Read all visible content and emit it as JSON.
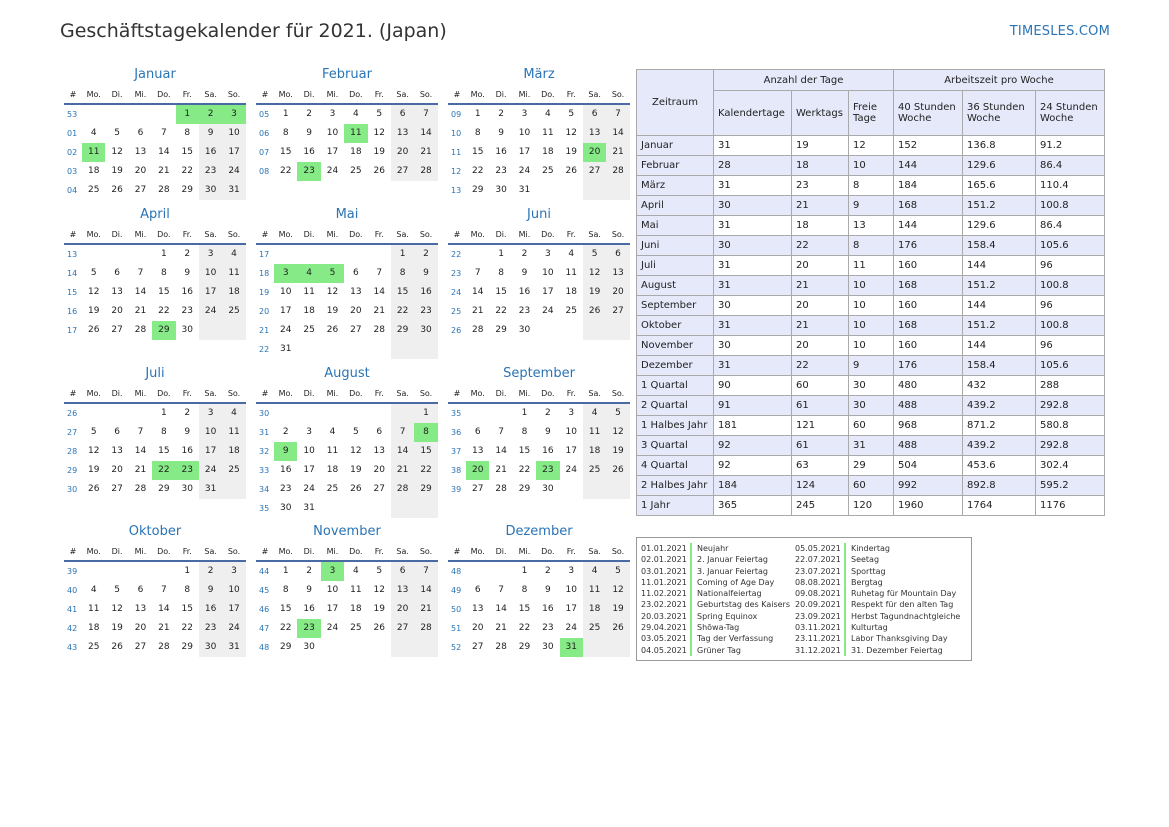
{
  "page": {
    "title": "Geschäftstagekalender für 2021. (Japan)",
    "brand": "TIMESLES.COM"
  },
  "calendar": {
    "weekday_header": [
      "#",
      "Mo.",
      "Di.",
      "Mi.",
      "Do.",
      "Fr.",
      "Sa.",
      "So."
    ],
    "months": [
      {
        "name": "Januar",
        "rows": [
          [
            "53",
            "",
            "",
            "",
            "",
            "1",
            "2",
            "3"
          ],
          [
            "01",
            "4",
            "5",
            "6",
            "7",
            "8",
            "9",
            "10"
          ],
          [
            "02",
            "11",
            "12",
            "13",
            "14",
            "15",
            "16",
            "17"
          ],
          [
            "03",
            "18",
            "19",
            "20",
            "21",
            "22",
            "23",
            "24"
          ],
          [
            "04",
            "25",
            "26",
            "27",
            "28",
            "29",
            "30",
            "31"
          ]
        ],
        "holidays": [
          "1",
          "2",
          "3",
          "11"
        ]
      },
      {
        "name": "Februar",
        "rows": [
          [
            "05",
            "1",
            "2",
            "3",
            "4",
            "5",
            "6",
            "7"
          ],
          [
            "06",
            "8",
            "9",
            "10",
            "11",
            "12",
            "13",
            "14"
          ],
          [
            "07",
            "15",
            "16",
            "17",
            "18",
            "19",
            "20",
            "21"
          ],
          [
            "08",
            "22",
            "23",
            "24",
            "25",
            "26",
            "27",
            "28"
          ]
        ],
        "holidays": [
          "11",
          "23"
        ]
      },
      {
        "name": "März",
        "rows": [
          [
            "09",
            "1",
            "2",
            "3",
            "4",
            "5",
            "6",
            "7"
          ],
          [
            "10",
            "8",
            "9",
            "10",
            "11",
            "12",
            "13",
            "14"
          ],
          [
            "11",
            "15",
            "16",
            "17",
            "18",
            "19",
            "20",
            "21"
          ],
          [
            "12",
            "22",
            "23",
            "24",
            "25",
            "26",
            "27",
            "28"
          ],
          [
            "13",
            "29",
            "30",
            "31",
            "",
            "",
            "",
            ""
          ]
        ],
        "holidays": [
          "20"
        ]
      },
      {
        "name": "April",
        "rows": [
          [
            "13",
            "",
            "",
            "",
            "1",
            "2",
            "3",
            "4"
          ],
          [
            "14",
            "5",
            "6",
            "7",
            "8",
            "9",
            "10",
            "11"
          ],
          [
            "15",
            "12",
            "13",
            "14",
            "15",
            "16",
            "17",
            "18"
          ],
          [
            "16",
            "19",
            "20",
            "21",
            "22",
            "23",
            "24",
            "25"
          ],
          [
            "17",
            "26",
            "27",
            "28",
            "29",
            "30",
            "",
            ""
          ]
        ],
        "holidays": [
          "29"
        ]
      },
      {
        "name": "Mai",
        "rows": [
          [
            "17",
            "",
            "",
            "",
            "",
            "",
            "1",
            "2"
          ],
          [
            "18",
            "3",
            "4",
            "5",
            "6",
            "7",
            "8",
            "9"
          ],
          [
            "19",
            "10",
            "11",
            "12",
            "13",
            "14",
            "15",
            "16"
          ],
          [
            "20",
            "17",
            "18",
            "19",
            "20",
            "21",
            "22",
            "23"
          ],
          [
            "21",
            "24",
            "25",
            "26",
            "27",
            "28",
            "29",
            "30"
          ],
          [
            "22",
            "31",
            "",
            "",
            "",
            "",
            "",
            ""
          ]
        ],
        "holidays": [
          "3",
          "4",
          "5"
        ]
      },
      {
        "name": "Juni",
        "rows": [
          [
            "22",
            "",
            "1",
            "2",
            "3",
            "4",
            "5",
            "6"
          ],
          [
            "23",
            "7",
            "8",
            "9",
            "10",
            "11",
            "12",
            "13"
          ],
          [
            "24",
            "14",
            "15",
            "16",
            "17",
            "18",
            "19",
            "20"
          ],
          [
            "25",
            "21",
            "22",
            "23",
            "24",
            "25",
            "26",
            "27"
          ],
          [
            "26",
            "28",
            "29",
            "30",
            "",
            "",
            "",
            ""
          ]
        ],
        "holidays": []
      },
      {
        "name": "Juli",
        "rows": [
          [
            "26",
            "",
            "",
            "",
            "1",
            "2",
            "3",
            "4"
          ],
          [
            "27",
            "5",
            "6",
            "7",
            "8",
            "9",
            "10",
            "11"
          ],
          [
            "28",
            "12",
            "13",
            "14",
            "15",
            "16",
            "17",
            "18"
          ],
          [
            "29",
            "19",
            "20",
            "21",
            "22",
            "23",
            "24",
            "25"
          ],
          [
            "30",
            "26",
            "27",
            "28",
            "29",
            "30",
            "31",
            ""
          ]
        ],
        "holidays": [
          "22",
          "23"
        ]
      },
      {
        "name": "August",
        "rows": [
          [
            "30",
            "",
            "",
            "",
            "",
            "",
            "",
            "1"
          ],
          [
            "31",
            "2",
            "3",
            "4",
            "5",
            "6",
            "7",
            "8"
          ],
          [
            "32",
            "9",
            "10",
            "11",
            "12",
            "13",
            "14",
            "15"
          ],
          [
            "33",
            "16",
            "17",
            "18",
            "19",
            "20",
            "21",
            "22"
          ],
          [
            "34",
            "23",
            "24",
            "25",
            "26",
            "27",
            "28",
            "29"
          ],
          [
            "35",
            "30",
            "31",
            "",
            "",
            "",
            "",
            ""
          ]
        ],
        "holidays": [
          "8",
          "9"
        ]
      },
      {
        "name": "September",
        "rows": [
          [
            "35",
            "",
            "",
            "1",
            "2",
            "3",
            "4",
            "5"
          ],
          [
            "36",
            "6",
            "7",
            "8",
            "9",
            "10",
            "11",
            "12"
          ],
          [
            "37",
            "13",
            "14",
            "15",
            "16",
            "17",
            "18",
            "19"
          ],
          [
            "38",
            "20",
            "21",
            "22",
            "23",
            "24",
            "25",
            "26"
          ],
          [
            "39",
            "27",
            "28",
            "29",
            "30",
            "",
            "",
            ""
          ]
        ],
        "holidays": [
          "20",
          "23"
        ]
      },
      {
        "name": "Oktober",
        "rows": [
          [
            "39",
            "",
            "",
            "",
            "",
            "1",
            "2",
            "3"
          ],
          [
            "40",
            "4",
            "5",
            "6",
            "7",
            "8",
            "9",
            "10"
          ],
          [
            "41",
            "11",
            "12",
            "13",
            "14",
            "15",
            "16",
            "17"
          ],
          [
            "42",
            "18",
            "19",
            "20",
            "21",
            "22",
            "23",
            "24"
          ],
          [
            "43",
            "25",
            "26",
            "27",
            "28",
            "29",
            "30",
            "31"
          ]
        ],
        "holidays": []
      },
      {
        "name": "November",
        "rows": [
          [
            "44",
            "1",
            "2",
            "3",
            "4",
            "5",
            "6",
            "7"
          ],
          [
            "45",
            "8",
            "9",
            "10",
            "11",
            "12",
            "13",
            "14"
          ],
          [
            "46",
            "15",
            "16",
            "17",
            "18",
            "19",
            "20",
            "21"
          ],
          [
            "47",
            "22",
            "23",
            "24",
            "25",
            "26",
            "27",
            "28"
          ],
          [
            "48",
            "29",
            "30",
            "",
            "",
            "",
            "",
            ""
          ]
        ],
        "holidays": [
          "3",
          "23"
        ]
      },
      {
        "name": "Dezember",
        "rows": [
          [
            "48",
            "",
            "",
            "1",
            "2",
            "3",
            "4",
            "5"
          ],
          [
            "49",
            "6",
            "7",
            "8",
            "9",
            "10",
            "11",
            "12"
          ],
          [
            "50",
            "13",
            "14",
            "15",
            "16",
            "17",
            "18",
            "19"
          ],
          [
            "51",
            "20",
            "21",
            "22",
            "23",
            "24",
            "25",
            "26"
          ],
          [
            "52",
            "27",
            "28",
            "29",
            "30",
            "31",
            "",
            ""
          ]
        ],
        "holidays": [
          "31"
        ]
      }
    ]
  },
  "summary": {
    "header_period": "Zeitraum",
    "header_days": "Anzahl der Tage",
    "header_hours": "Arbeitszeit pro Woche",
    "columns": [
      "Kalendertage",
      "Werktags",
      "Freie Tage",
      "40 Stunden Woche",
      "36 Stunden Woche",
      "24 Stunden Woche"
    ],
    "rows": [
      [
        "Januar",
        "31",
        "19",
        "12",
        "152",
        "136.8",
        "91.2"
      ],
      [
        "Februar",
        "28",
        "18",
        "10",
        "144",
        "129.6",
        "86.4"
      ],
      [
        "März",
        "31",
        "23",
        "8",
        "184",
        "165.6",
        "110.4"
      ],
      [
        "April",
        "30",
        "21",
        "9",
        "168",
        "151.2",
        "100.8"
      ],
      [
        "Mai",
        "31",
        "18",
        "13",
        "144",
        "129.6",
        "86.4"
      ],
      [
        "Juni",
        "30",
        "22",
        "8",
        "176",
        "158.4",
        "105.6"
      ],
      [
        "Juli",
        "31",
        "20",
        "11",
        "160",
        "144",
        "96"
      ],
      [
        "August",
        "31",
        "21",
        "10",
        "168",
        "151.2",
        "100.8"
      ],
      [
        "September",
        "30",
        "20",
        "10",
        "160",
        "144",
        "96"
      ],
      [
        "Oktober",
        "31",
        "21",
        "10",
        "168",
        "151.2",
        "100.8"
      ],
      [
        "November",
        "30",
        "20",
        "10",
        "160",
        "144",
        "96"
      ],
      [
        "Dezember",
        "31",
        "22",
        "9",
        "176",
        "158.4",
        "105.6"
      ],
      [
        "1 Quartal",
        "90",
        "60",
        "30",
        "480",
        "432",
        "288"
      ],
      [
        "2 Quartal",
        "91",
        "61",
        "30",
        "488",
        "439.2",
        "292.8"
      ],
      [
        "1 Halbes Jahr",
        "181",
        "121",
        "60",
        "968",
        "871.2",
        "580.8"
      ],
      [
        "3 Quartal",
        "92",
        "61",
        "31",
        "488",
        "439.2",
        "292.8"
      ],
      [
        "4 Quartal",
        "92",
        "63",
        "29",
        "504",
        "453.6",
        "302.4"
      ],
      [
        "2 Halbes Jahr",
        "184",
        "124",
        "60",
        "992",
        "892.8",
        "595.2"
      ],
      [
        "1 Jahr",
        "365",
        "245",
        "120",
        "1960",
        "1764",
        "1176"
      ]
    ]
  },
  "holidays": [
    [
      {
        "date": "01.01.2021",
        "name": "Neujahr"
      },
      {
        "date": "02.01.2021",
        "name": "2. Januar Feiertag"
      },
      {
        "date": "03.01.2021",
        "name": "3. Januar Feiertag"
      },
      {
        "date": "11.01.2021",
        "name": "Coming of Age Day"
      },
      {
        "date": "11.02.2021",
        "name": "Nationalfeiertag"
      },
      {
        "date": "23.02.2021",
        "name": "Geburtstag des Kaisers"
      },
      {
        "date": "20.03.2021",
        "name": "Spring Equinox"
      },
      {
        "date": "29.04.2021",
        "name": "Shōwa-Tag"
      },
      {
        "date": "03.05.2021",
        "name": "Tag der Verfassung"
      },
      {
        "date": "04.05.2021",
        "name": "Grüner Tag"
      }
    ],
    [
      {
        "date": "05.05.2021",
        "name": "Kindertag"
      },
      {
        "date": "22.07.2021",
        "name": "Seetag"
      },
      {
        "date": "23.07.2021",
        "name": "Sporttag"
      },
      {
        "date": "08.08.2021",
        "name": "Bergtag"
      },
      {
        "date": "09.08.2021",
        "name": "Ruhetag für Mountain Day"
      },
      {
        "date": "20.09.2021",
        "name": "Respekt für den alten Tag"
      },
      {
        "date": "23.09.2021",
        "name": "Herbst Tagundnachtgleiche"
      },
      {
        "date": "03.11.2021",
        "name": "Kulturtag"
      },
      {
        "date": "23.11.2021",
        "name": "Labor Thanksgiving Day"
      },
      {
        "date": "31.12.2021",
        "name": "31. Dezember Feiertag"
      }
    ]
  ]
}
